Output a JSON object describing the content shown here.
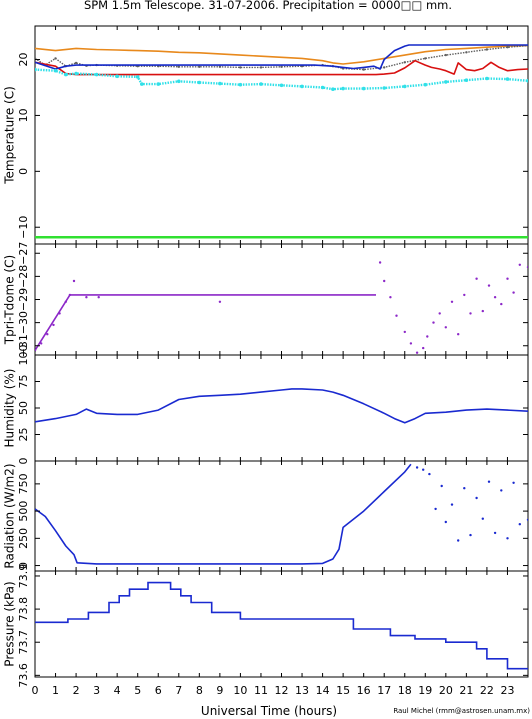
{
  "chart_data": {
    "type": "line",
    "title": "SPM 1.5m Telescope. 31-07-2006. Precipitation = 0000□□ mm.",
    "xlabel": "Universal Time (hours)",
    "credit": "Raul Michel (rmm@astrosen.unam.mx)",
    "xlim": [
      0,
      24
    ],
    "x_ticks": [
      "0",
      "1",
      "2",
      "3",
      "4",
      "5",
      "6",
      "7",
      "8",
      "9",
      "10",
      "11",
      "12",
      "13",
      "14",
      "15",
      "16",
      "17",
      "18",
      "19",
      "20",
      "21",
      "22",
      "23"
    ],
    "colors": {
      "orange": "#e8891c",
      "gray": "#606060",
      "red": "#d81010",
      "navy": "#1428c8",
      "cyan": "#30e0e8",
      "green": "#30e030",
      "purple": "#8c28c8",
      "blue": "#1a2ad0"
    },
    "panels": [
      {
        "key": "temperature",
        "ylabel": "Temperature (C)",
        "ylim": [
          -13,
          26
        ],
        "yticks": [
          -10,
          0,
          10,
          20
        ],
        "ytick_labels": [
          "−10",
          "0",
          "10",
          "20"
        ],
        "series": [
          {
            "color": "orange",
            "style": "line",
            "x": [
              0,
              1,
              2,
              3,
              4,
              5,
              6,
              7,
              8,
              9,
              10,
              11,
              12,
              13,
              14,
              14.5,
              15,
              16,
              17,
              18,
              19,
              20,
              21,
              22,
              23,
              24
            ],
            "y": [
              22,
              21.6,
              22,
              21.8,
              21.7,
              21.6,
              21.5,
              21.3,
              21.2,
              21,
              20.8,
              20.6,
              20.4,
              20.2,
              19.8,
              19.4,
              19.2,
              19.6,
              20.2,
              20.8,
              21.4,
              21.8,
              22,
              22.2,
              22.4,
              22.5
            ]
          },
          {
            "color": "gray",
            "style": "dots",
            "x": [
              0,
              0.5,
              1,
              1.5,
              2,
              2.5,
              3,
              4,
              5,
              6,
              7,
              8,
              9,
              10,
              11,
              12,
              13,
              14,
              14.5,
              15,
              16,
              17,
              18,
              19,
              20,
              21,
              22,
              23,
              24
            ],
            "y": [
              20.2,
              19,
              20.2,
              18.8,
              19.4,
              18.9,
              19,
              18.9,
              18.8,
              18.8,
              18.7,
              18.7,
              18.7,
              18.6,
              18.6,
              18.7,
              18.8,
              19,
              18.8,
              18.4,
              18.2,
              18.6,
              19.5,
              20.2,
              20.8,
              21.3,
              21.8,
              22.2,
              22.5
            ]
          },
          {
            "color": "red",
            "style": "line",
            "x": [
              0,
              1,
              1.5,
              2,
              5,
              10,
              15,
              16.6,
              17,
              17.5,
              18,
              18.5,
              19,
              19.3,
              19.7,
              20,
              20.4,
              20.6,
              21,
              21.4,
              21.8,
              22.2,
              22.6,
              23,
              23.5,
              24
            ],
            "y": [
              19.5,
              18.8,
              17.5,
              17.3,
              17.3,
              17.3,
              17.3,
              17.3,
              17.4,
              17.6,
              18.5,
              19.8,
              19,
              18.6,
              18.3,
              18,
              17.4,
              19.4,
              18.2,
              18,
              18.4,
              19.5,
              18.6,
              18,
              18.2,
              18.3
            ]
          },
          {
            "color": "navy",
            "style": "line",
            "x": [
              0,
              1,
              1.5,
              2,
              5,
              10,
              13.6,
              14.5,
              15,
              15.5,
              16,
              16.5,
              16.8,
              17,
              17.5,
              18,
              18.2,
              19,
              20,
              21,
              22,
              23,
              24
            ],
            "y": [
              19.5,
              18.3,
              18.8,
              19,
              19,
              19,
              19,
              18.8,
              18.6,
              18.4,
              18.6,
              18.8,
              18.3,
              20,
              21.6,
              22.4,
              22.6,
              22.6,
              22.6,
              22.6,
              22.6,
              22.6,
              22.6
            ]
          },
          {
            "color": "cyan",
            "style": "dots",
            "x": [
              0,
              1,
              1.5,
              2,
              3,
              4,
              5,
              5.2,
              6,
              7,
              8,
              9,
              10,
              11,
              12,
              13,
              14,
              14.5,
              15,
              16,
              17,
              18,
              19,
              20,
              21,
              22,
              23,
              24
            ],
            "y": [
              18.2,
              18,
              17.3,
              17.5,
              17.3,
              17,
              16.9,
              15.6,
              15.6,
              16.1,
              15.9,
              15.7,
              15.5,
              15.6,
              15.4,
              15.2,
              15,
              14.7,
              14.8,
              14.8,
              14.9,
              15.2,
              15.5,
              16,
              16.3,
              16.6,
              16.5,
              16.2
            ]
          },
          {
            "color": "green",
            "style": "line",
            "x": [
              0,
              24
            ],
            "y": [
              -11.8,
              -11.8
            ]
          }
        ]
      },
      {
        "key": "tpri",
        "ylabel": "Tpri-Tdome (C)",
        "ylim": [
          -31.4,
          -26.6
        ],
        "yticks": [
          -31,
          -30,
          -29,
          -28,
          -27
        ],
        "ytick_labels": [
          "−31",
          "−30",
          "−29",
          "−28",
          "−27"
        ],
        "series": [
          {
            "color": "purple",
            "style": "line",
            "x": [
              0,
              1.7,
              16.6
            ],
            "y": [
              -31.2,
              -28.8,
              -28.8
            ]
          },
          {
            "color": "purple",
            "style": "dots",
            "x": [
              0,
              0.3,
              0.6,
              0.9,
              1.2,
              1.5,
              1.7,
              1.9,
              2.5,
              3.1,
              9,
              16.8,
              17,
              17.3,
              17.6,
              18,
              18.3,
              18.6,
              18.9,
              19.1,
              19.4,
              19.7,
              20,
              20.3,
              20.6,
              20.9,
              21.2,
              21.5,
              21.8,
              22.1,
              22.4,
              22.7,
              23,
              23.3,
              23.6,
              24
            ],
            "y": [
              -31.2,
              -30.9,
              -30.5,
              -30.1,
              -29.6,
              -29.1,
              -28.8,
              -28.2,
              -28.9,
              -28.9,
              -29.1,
              -27.4,
              -28.2,
              -28.9,
              -29.7,
              -30.4,
              -30.9,
              -31.3,
              -31.1,
              -30.6,
              -30,
              -29.6,
              -30.2,
              -29.1,
              -30.5,
              -28.8,
              -29.6,
              -28.1,
              -29.5,
              -28.4,
              -28.9,
              -29.2,
              -28.1,
              -28.7,
              -27.5,
              -27.6
            ]
          }
        ]
      },
      {
        "key": "humidity",
        "ylabel": "Humidity (%)",
        "ylim": [
          0,
          100
        ],
        "yticks": [
          0,
          25,
          50,
          75,
          100
        ],
        "ytick_labels": [
          "0",
          "25",
          "50",
          "75",
          "100"
        ],
        "series": [
          {
            "color": "blue",
            "style": "line",
            "x": [
              0,
              1,
              2,
              2.5,
              3,
              4,
              5,
              6,
              7,
              8,
              9,
              10,
              11,
              12,
              12.5,
              13,
              14,
              14.5,
              15,
              16,
              17,
              17.5,
              18,
              18.5,
              19,
              20,
              21,
              22,
              23,
              24
            ],
            "y": [
              37,
              40,
              44,
              49,
              45,
              44,
              44,
              48,
              58,
              61,
              62,
              63,
              65,
              67,
              68,
              68,
              67,
              65,
              62,
              54,
              45,
              40,
              36,
              40,
              45,
              46,
              48,
              49,
              48,
              47
            ]
          }
        ]
      },
      {
        "key": "radiation",
        "ylabel": "Radiation (W/m2)",
        "ylim": [
          -50,
          960
        ],
        "yticks": [
          0,
          250,
          500,
          750
        ],
        "ytick_labels": [
          "0",
          "250",
          "500",
          "750"
        ],
        "series": [
          {
            "color": "blue",
            "style": "line",
            "x": [
              0,
              0.5,
              1,
              1.5,
              1.9,
              2.05,
              3,
              8,
              13,
              14,
              14.5,
              14.8,
              15,
              16,
              17,
              18,
              18.3
            ],
            "y": [
              520,
              450,
              320,
              180,
              100,
              25,
              15,
              15,
              15,
              20,
              60,
              150,
              350,
              500,
              680,
              860,
              930
            ]
          },
          {
            "color": "blue",
            "style": "dots",
            "x": [
              18.6,
              18.9,
              19.2,
              19.5,
              19.8,
              20,
              20.3,
              20.6,
              20.9,
              21.2,
              21.5,
              21.8,
              22.1,
              22.4,
              22.7,
              23,
              23.3,
              23.6,
              24
            ],
            "y": [
              900,
              880,
              840,
              520,
              730,
              400,
              560,
              230,
              710,
              280,
              620,
              430,
              770,
              300,
              690,
              250,
              760,
              380,
              420
            ]
          }
        ]
      },
      {
        "key": "pressure",
        "ylabel": "Pressure (kPa)",
        "ylim": [
          73.595,
          73.915
        ],
        "yticks": [
          73.6,
          73.7,
          73.8,
          73.9
        ],
        "ytick_labels": [
          "73.6",
          "73.7",
          "73.8",
          "73.9"
        ],
        "series": [
          {
            "color": "blue",
            "style": "steps",
            "x": [
              0,
              1.6,
              2.6,
              3.6,
              4.1,
              4.6,
              5.5,
              6.6,
              7.1,
              7.6,
              8.6,
              10,
              14.2,
              15.5,
              16.6,
              17.3,
              18.5,
              20,
              21.5,
              22,
              23,
              24
            ],
            "y": [
              73.76,
              73.77,
              73.79,
              73.82,
              73.84,
              73.86,
              73.88,
              73.86,
              73.84,
              73.82,
              73.79,
              73.77,
              73.77,
              73.74,
              73.74,
              73.72,
              73.71,
              73.7,
              73.68,
              73.65,
              73.62,
              73.62
            ]
          }
        ]
      }
    ]
  }
}
